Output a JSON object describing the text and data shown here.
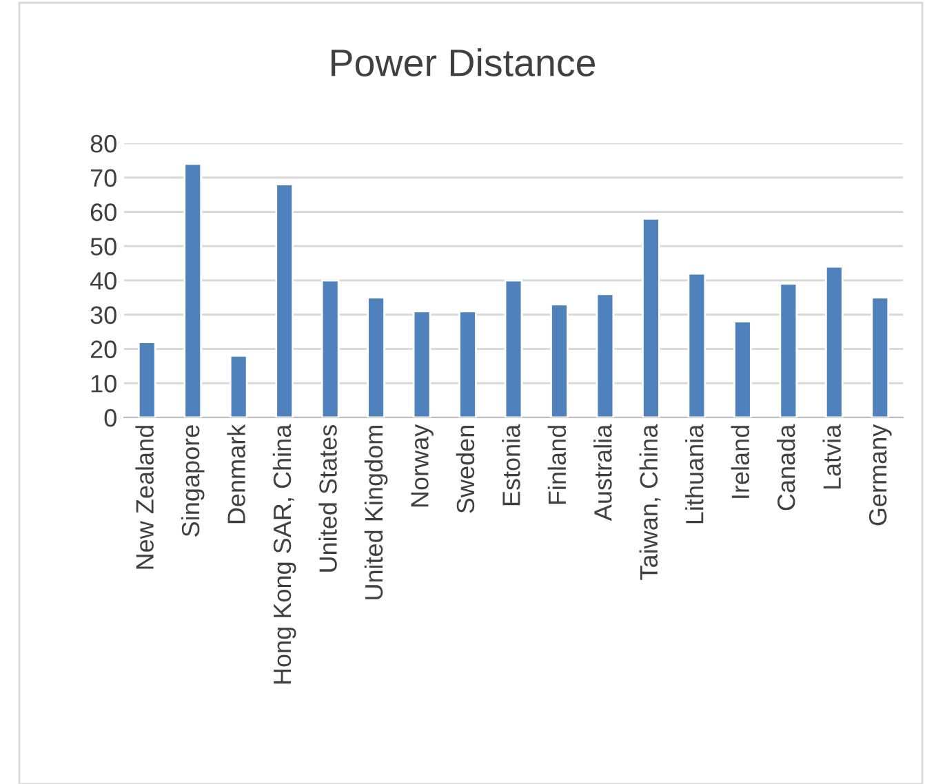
{
  "chart_data": {
    "type": "bar",
    "title": "Power Distance",
    "categories": [
      "New Zealand",
      "Singapore",
      "Denmark",
      "Hong Kong SAR, China",
      "United States",
      "United Kingdom",
      "Norway",
      "Sweden",
      "Estonia",
      "Finland",
      "Australia",
      "Taiwan, China",
      "Lithuania",
      "Ireland",
      "Canada",
      "Latvia",
      "Germany"
    ],
    "values": [
      22,
      74,
      18,
      68,
      40,
      35,
      31,
      31,
      40,
      33,
      36,
      58,
      42,
      28,
      39,
      44,
      35
    ],
    "color": "#4f81bd",
    "ylim": [
      0,
      80
    ],
    "yticks": [
      0,
      10,
      20,
      30,
      40,
      50,
      60,
      70,
      80
    ],
    "grid": "y",
    "legend": false
  }
}
